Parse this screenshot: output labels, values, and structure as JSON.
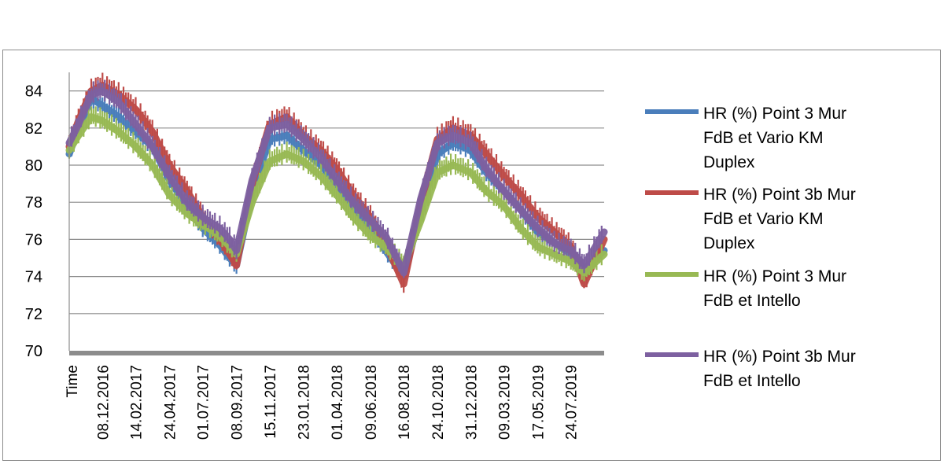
{
  "chart_data": {
    "type": "line",
    "title": "",
    "xlabel": "Time",
    "ylabel": "",
    "ylim": [
      70,
      85
    ],
    "yticks": [
      70,
      72,
      74,
      76,
      78,
      80,
      82,
      84
    ],
    "x_ticks": [
      "08.12.2016",
      "14.02.2017",
      "24.04.2017",
      "01.07.2017",
      "08.09.2017",
      "15.11.2017",
      "23.01.2018",
      "01.04.2018",
      "09.06.2018",
      "16.08.2018",
      "24.10.2018",
      "31.12.2018",
      "09.03.2019",
      "17.05.2019",
      "24.07.2019"
    ],
    "x_range": [
      "2016-10-01",
      "2019-09-30"
    ],
    "grid": "horizontal",
    "legend_position": "right",
    "series": [
      {
        "name": "HR (%) Point 3 Mur FdB et Vario KM Duplex",
        "color": "#4a7ebb",
        "x": [
          "2016-10-01",
          "2016-10-20",
          "2016-11-15",
          "2016-12-08",
          "2017-01-10",
          "2017-02-14",
          "2017-03-20",
          "2017-04-24",
          "2017-05-30",
          "2017-07-01",
          "2017-08-05",
          "2017-08-25",
          "2017-09-08",
          "2017-10-10",
          "2017-11-15",
          "2017-12-20",
          "2018-01-23",
          "2018-02-28",
          "2018-04-01",
          "2018-05-05",
          "2018-06-09",
          "2018-07-10",
          "2018-08-16",
          "2018-09-20",
          "2018-10-24",
          "2018-11-25",
          "2018-12-31",
          "2019-02-01",
          "2019-03-09",
          "2019-04-12",
          "2019-05-17",
          "2019-06-20",
          "2019-07-24",
          "2019-08-20",
          "2019-09-30"
        ],
        "y": [
          80.6,
          82.0,
          83.6,
          83.2,
          82.6,
          81.8,
          81.0,
          79.2,
          77.8,
          76.6,
          75.7,
          75.0,
          74.6,
          78.5,
          81.4,
          81.6,
          80.8,
          80.0,
          79.0,
          77.8,
          76.6,
          75.4,
          74.0,
          77.5,
          80.6,
          81.2,
          80.8,
          79.6,
          78.6,
          77.6,
          76.4,
          75.8,
          75.2,
          74.4,
          75.4
        ]
      },
      {
        "name": "HR (%) Point 3b Mur FdB et Vario KM Duplex",
        "color": "#be4b48",
        "x": [
          "2016-10-01",
          "2016-10-20",
          "2016-11-15",
          "2016-12-08",
          "2017-01-10",
          "2017-02-14",
          "2017-03-20",
          "2017-04-24",
          "2017-05-30",
          "2017-07-01",
          "2017-08-05",
          "2017-08-25",
          "2017-09-08",
          "2017-10-10",
          "2017-11-15",
          "2017-12-20",
          "2018-01-23",
          "2018-02-28",
          "2018-04-01",
          "2018-05-05",
          "2018-06-09",
          "2018-07-10",
          "2018-08-16",
          "2018-09-20",
          "2018-10-24",
          "2018-11-25",
          "2018-12-31",
          "2019-02-01",
          "2019-03-09",
          "2019-04-12",
          "2019-05-17",
          "2019-06-20",
          "2019-07-24",
          "2019-08-20",
          "2019-09-30"
        ],
        "y": [
          81.0,
          82.4,
          84.0,
          84.3,
          83.8,
          83.0,
          81.8,
          80.0,
          78.6,
          77.2,
          76.0,
          75.2,
          74.6,
          79.0,
          82.2,
          82.6,
          81.6,
          80.8,
          79.8,
          78.4,
          77.2,
          75.8,
          73.6,
          78.0,
          81.4,
          82.0,
          81.6,
          80.6,
          79.4,
          78.4,
          77.2,
          76.4,
          75.6,
          73.6,
          76.0
        ]
      },
      {
        "name": "HR (%) Point 3 Mur FdB et Intello",
        "color": "#98b954",
        "x": [
          "2016-10-01",
          "2016-10-20",
          "2016-11-15",
          "2016-12-08",
          "2017-01-10",
          "2017-02-14",
          "2017-03-20",
          "2017-04-24",
          "2017-05-30",
          "2017-07-01",
          "2017-08-05",
          "2017-08-25",
          "2017-09-08",
          "2017-10-10",
          "2017-11-15",
          "2017-12-20",
          "2018-01-23",
          "2018-02-28",
          "2018-04-01",
          "2018-05-05",
          "2018-06-09",
          "2018-07-10",
          "2018-08-16",
          "2018-09-20",
          "2018-10-24",
          "2018-11-25",
          "2018-12-31",
          "2019-02-01",
          "2019-03-09",
          "2019-04-12",
          "2019-05-17",
          "2019-06-20",
          "2019-07-24",
          "2019-08-20",
          "2019-09-30"
        ],
        "y": [
          80.8,
          81.6,
          82.6,
          82.4,
          81.8,
          81.0,
          80.0,
          78.4,
          77.4,
          76.8,
          76.2,
          75.6,
          75.2,
          78.0,
          80.2,
          80.6,
          80.2,
          79.4,
          78.4,
          77.2,
          76.2,
          75.6,
          74.6,
          77.0,
          79.6,
          80.0,
          79.6,
          78.6,
          77.8,
          76.6,
          75.6,
          75.2,
          74.8,
          74.2,
          75.2
        ]
      },
      {
        "name": "HR (%) Point 3b Mur FdB et Intello",
        "color": "#7d60a0",
        "x": [
          "2016-10-01",
          "2016-10-20",
          "2016-11-15",
          "2016-12-08",
          "2017-01-10",
          "2017-02-14",
          "2017-03-20",
          "2017-04-24",
          "2017-05-30",
          "2017-07-01",
          "2017-08-05",
          "2017-08-25",
          "2017-09-08",
          "2017-10-10",
          "2017-11-15",
          "2017-12-20",
          "2018-01-23",
          "2018-02-28",
          "2018-04-01",
          "2018-05-05",
          "2018-06-09",
          "2018-07-10",
          "2018-08-16",
          "2018-09-20",
          "2018-10-24",
          "2018-11-25",
          "2018-12-31",
          "2019-02-01",
          "2019-03-09",
          "2019-04-12",
          "2019-05-17",
          "2019-06-20",
          "2019-07-24",
          "2019-08-20",
          "2019-09-30"
        ],
        "y": [
          81.2,
          82.2,
          83.8,
          84.0,
          83.4,
          82.2,
          81.0,
          79.4,
          78.0,
          77.2,
          76.6,
          76.0,
          75.4,
          79.2,
          82.0,
          82.2,
          81.4,
          80.4,
          79.2,
          78.0,
          77.0,
          76.2,
          74.2,
          78.2,
          81.2,
          81.6,
          81.2,
          79.8,
          78.6,
          77.6,
          76.6,
          75.8,
          75.4,
          74.6,
          76.4
        ]
      }
    ]
  }
}
